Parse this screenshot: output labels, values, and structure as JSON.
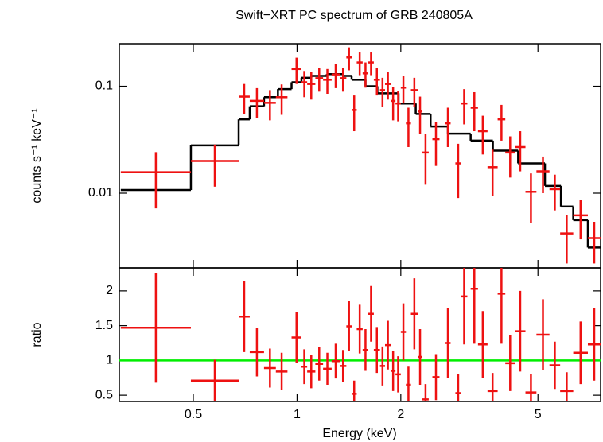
{
  "chart_data": [
    {
      "type": "errorbar",
      "title": "Swift−XRT PC spectrum of GRB 240805A",
      "ylabel": "counts s⁻¹ keV⁻¹",
      "xscale": "log",
      "yscale": "log",
      "xlim": [
        0.305,
        7.6
      ],
      "ylim": [
        0.002,
        0.25
      ],
      "yticks": [
        0.01,
        0.1
      ],
      "data": {
        "color": "#ee1111",
        "x_lo": [
          0.308,
          0.492,
          0.677,
          0.729,
          0.802,
          0.868,
          0.964,
          1.03,
          1.07,
          1.13,
          1.19,
          1.26,
          1.33,
          1.39,
          1.44,
          1.49,
          1.55,
          1.61,
          1.67,
          1.74,
          1.8,
          1.87,
          1.93,
          2.0,
          2.07,
          2.14,
          2.24,
          2.31,
          2.47,
          2.69,
          2.88,
          2.99,
          3.19,
          3.35,
          3.57,
          3.82,
          4.02,
          4.29,
          4.6,
          4.95,
          5.4,
          5.8,
          6.33,
          6.98
        ],
        "x_hi": [
          0.492,
          0.677,
          0.729,
          0.802,
          0.868,
          0.938,
          1.03,
          1.07,
          1.13,
          1.19,
          1.26,
          1.33,
          1.39,
          1.44,
          1.49,
          1.55,
          1.61,
          1.67,
          1.74,
          1.8,
          1.87,
          1.93,
          2.0,
          2.07,
          2.14,
          2.24,
          2.31,
          2.41,
          2.59,
          2.79,
          2.99,
          3.12,
          3.35,
          3.57,
          3.82,
          4.02,
          4.29,
          4.6,
          4.95,
          5.4,
          5.8,
          6.33,
          6.98,
          7.6
        ],
        "y": [
          0.0157,
          0.02,
          0.08,
          0.073,
          0.07,
          0.079,
          0.145,
          0.109,
          0.105,
          0.119,
          0.115,
          0.129,
          0.119,
          0.186,
          0.06,
          0.167,
          0.132,
          0.167,
          0.115,
          0.092,
          0.105,
          0.073,
          0.069,
          0.097,
          0.045,
          0.092,
          0.058,
          0.024,
          0.032,
          0.045,
          0.019,
          0.069,
          0.063,
          0.038,
          0.0175,
          0.049,
          0.024,
          0.027,
          0.0103,
          0.016,
          0.0109,
          0.0042,
          0.0062,
          0.0038
        ],
        "yerr": [
          0.0085,
          0.0085,
          0.025,
          0.023,
          0.022,
          0.025,
          0.04,
          0.03,
          0.03,
          0.03,
          0.03,
          0.033,
          0.03,
          0.045,
          0.022,
          0.04,
          0.035,
          0.04,
          0.033,
          0.028,
          0.03,
          0.025,
          0.022,
          0.028,
          0.018,
          0.028,
          0.022,
          0.012,
          0.014,
          0.018,
          0.01,
          0.025,
          0.025,
          0.015,
          0.008,
          0.018,
          0.01,
          0.011,
          0.005,
          0.006,
          0.004,
          0.002,
          0.0025,
          0.0016
        ]
      },
      "model": {
        "color": "#000000",
        "edges": [
          0.308,
          0.492,
          0.677,
          0.729,
          0.802,
          0.88,
          0.964,
          1.03,
          1.1,
          1.22,
          1.36,
          1.44,
          1.58,
          1.71,
          1.97,
          2.21,
          2.44,
          2.74,
          3.19,
          3.7,
          4.38,
          5.24,
          5.83,
          6.33,
          6.98,
          7.6
        ],
        "values": [
          0.0107,
          0.028,
          0.049,
          0.065,
          0.079,
          0.094,
          0.109,
          0.12,
          0.125,
          0.13,
          0.125,
          0.115,
          0.1,
          0.086,
          0.069,
          0.055,
          0.042,
          0.036,
          0.031,
          0.025,
          0.019,
          0.0117,
          0.0075,
          0.0056,
          0.0031
        ]
      }
    },
    {
      "type": "errorbar",
      "xlabel": "Energy (keV)",
      "ylabel": "ratio",
      "xscale": "log",
      "xlim": [
        0.305,
        7.6
      ],
      "xticks": [
        0.5,
        1,
        2,
        5
      ],
      "ylim": [
        0.41,
        2.33
      ],
      "yticks": [
        0.5,
        1,
        1.5,
        2
      ],
      "reference_line": 1,
      "reference_color": "#00ee00",
      "ratio": {
        "color": "#ee1111",
        "values": [
          1.47,
          0.71,
          1.63,
          1.12,
          0.89,
          0.84,
          1.33,
          0.91,
          0.84,
          0.95,
          0.88,
          0.99,
          0.92,
          1.49,
          0.52,
          1.45,
          1.15,
          1.67,
          1.15,
          0.92,
          1.22,
          0.85,
          0.8,
          1.41,
          0.65,
          1.67,
          1.05,
          0.44,
          0.76,
          1.25,
          0.53,
          1.92,
          2.03,
          1.23,
          0.56,
          1.96,
          0.96,
          1.42,
          0.54,
          1.37,
          0.93,
          0.56,
          1.11,
          1.23
        ],
        "errors": [
          0.79,
          0.3,
          0.51,
          0.35,
          0.28,
          0.27,
          0.37,
          0.25,
          0.24,
          0.24,
          0.23,
          0.25,
          0.23,
          0.36,
          0.19,
          0.35,
          0.3,
          0.4,
          0.33,
          0.28,
          0.35,
          0.29,
          0.26,
          0.41,
          0.26,
          0.51,
          0.4,
          0.22,
          0.33,
          0.5,
          0.28,
          0.69,
          0.79,
          0.48,
          0.26,
          0.72,
          0.4,
          0.58,
          0.26,
          0.51,
          0.34,
          0.27,
          0.45,
          0.52
        ]
      }
    }
  ]
}
